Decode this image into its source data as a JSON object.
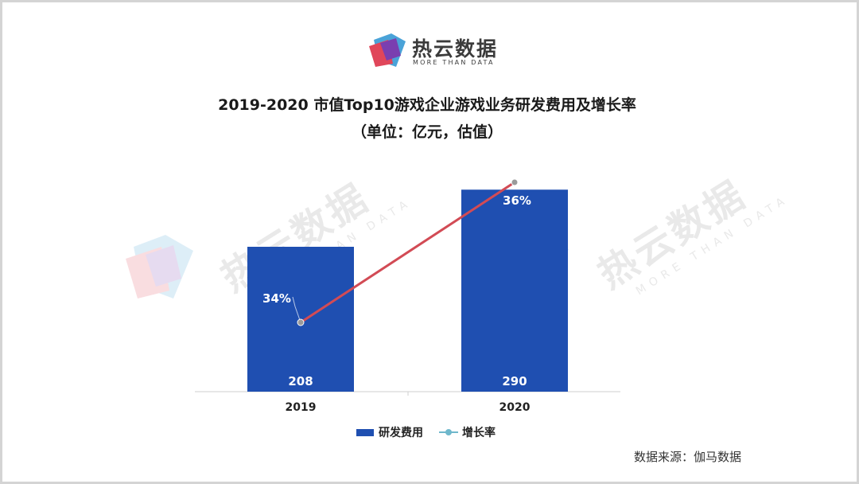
{
  "brand": {
    "name": "热云数据",
    "tagline": "MORE THAN DATA"
  },
  "title": {
    "line1": "2019-2020 市值Top10游戏企业游戏业务研发费用及增长率",
    "line2": "（单位：亿元，估值）"
  },
  "source": "数据来源：伽马数据",
  "colors": {
    "bar": "#1f4fb1",
    "line": "#d24b55",
    "marker": "#9a9a9a",
    "legend_line": "#6fb8cc"
  },
  "chart_data": {
    "type": "bar",
    "categories": [
      "2019",
      "2020"
    ],
    "series": [
      {
        "name": "研发费用",
        "type": "bar",
        "values": [
          208,
          290
        ],
        "labels": [
          "208",
          "290"
        ]
      },
      {
        "name": "增长率",
        "type": "line",
        "values": [
          34,
          36
        ],
        "unit": "%",
        "labels": [
          "34%",
          "36%"
        ]
      }
    ],
    "legend": [
      "研发费用",
      "增长率"
    ],
    "legend_position": "bottom"
  }
}
